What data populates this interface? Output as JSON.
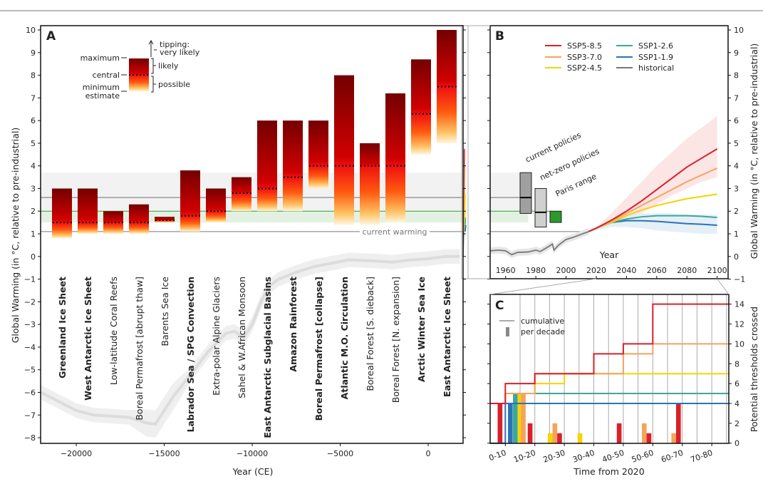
{
  "figure": {
    "panel_a_letter": "A",
    "panel_b_letter": "B",
    "panel_c_letter": "C"
  },
  "chart_data": [
    {
      "panel": "A",
      "type": "bar",
      "xlabel": "Year (CE)",
      "ylabel": "Global Warming (in °C, relative to pre-industrial)",
      "ylim": [
        -8.2,
        10.2
      ],
      "xlim": [
        -22000,
        2300
      ],
      "yticks": [
        "10",
        "9",
        "8",
        "7",
        "6",
        "5",
        "4",
        "3",
        "2",
        "1",
        "0",
        "−1",
        "−2",
        "−3",
        "−4",
        "−5",
        "−6",
        "−7",
        "−8"
      ],
      "ytick_values": [
        10,
        9,
        8,
        7,
        6,
        5,
        4,
        3,
        2,
        1,
        0,
        -1,
        -2,
        -3,
        -4,
        -5,
        -6,
        -7,
        -8
      ],
      "xticks": [
        "−20000",
        "−15000",
        "−10000",
        "−5000",
        "0"
      ],
      "xtick_values": [
        -20000,
        -15000,
        -10000,
        -5000,
        0
      ],
      "legend": {
        "maximum": "maximum",
        "central": "central",
        "minimum": "minimum",
        "estimate": "estimate",
        "tipping": "tipping:",
        "very_likely": "very likely",
        "likely": "likely",
        "possible": "possible"
      },
      "current_warming_label": "current warming",
      "reference_levels": {
        "current_warming": 1.1,
        "current_policies": 2.6,
        "current_policies_band": [
          1.9,
          3.7
        ],
        "paris": 2.0,
        "paris_band": [
          1.5,
          2.0
        ]
      },
      "elements": [
        {
          "name": "Greenland Ice Sheet",
          "bold": true,
          "max": 3.0,
          "central": 1.5,
          "min": 0.8
        },
        {
          "name": "West Antarctic Ice Sheet",
          "bold": true,
          "max": 3.0,
          "central": 1.5,
          "min": 1.0
        },
        {
          "name": "Low-latitude Coral Reefs",
          "bold": false,
          "max": 2.0,
          "central": 1.5,
          "min": 1.0
        },
        {
          "name": "Boreal Permafrost [abrupt thaw]",
          "bold": false,
          "max": 2.3,
          "central": 1.5,
          "min": 1.0
        },
        {
          "name": "Barents Sea Ice",
          "bold": false,
          "max": 1.75,
          "central": 1.6,
          "min": 1.5
        },
        {
          "name": "Labrador Sea / SPG Convection",
          "bold": true,
          "max": 3.8,
          "central": 1.8,
          "min": 1.1
        },
        {
          "name": "Extra-polar Alpine Glaciers",
          "bold": false,
          "max": 3.0,
          "central": 2.0,
          "min": 1.5
        },
        {
          "name": "Sahel & W.African Monsoon",
          "bold": false,
          "max": 3.5,
          "central": 2.8,
          "min": 2.0
        },
        {
          "name": "East Antarctic Subglacial Basins",
          "bold": true,
          "max": 6.0,
          "central": 3.0,
          "min": 2.0
        },
        {
          "name": "Amazon Rainforest",
          "bold": true,
          "max": 6.0,
          "central": 3.5,
          "min": 2.0
        },
        {
          "name": "Boreal Permafrost [collapse]",
          "bold": true,
          "max": 6.0,
          "central": 4.0,
          "min": 3.0
        },
        {
          "name": "Atlantic M.O. Circulation",
          "bold": true,
          "max": 8.0,
          "central": 4.0,
          "min": 1.4
        },
        {
          "name": "Boreal Forest [S. dieback]",
          "bold": false,
          "max": 5.0,
          "central": 4.0,
          "min": 1.4
        },
        {
          "name": "Boreal Forest [N. expansion]",
          "bold": false,
          "max": 7.2,
          "central": 4.0,
          "min": 1.5
        },
        {
          "name": "Arctic Winter Sea Ice",
          "bold": true,
          "max": 8.7,
          "central": 6.3,
          "min": 4.5
        },
        {
          "name": "East Antarctic Ice Sheet",
          "bold": true,
          "max": 10.0,
          "central": 7.5,
          "min": 5.0
        }
      ],
      "paleo_temperature": {
        "years": [
          -22000,
          -21000,
          -20000,
          -19000,
          -18000,
          -17000,
          -16000,
          -15500,
          -15000,
          -14500,
          -13500,
          -12500,
          -11500,
          -11000,
          -10500,
          -10000,
          -9500,
          -9000,
          -8500,
          -7500,
          -6500,
          -5500,
          -4500,
          -3000,
          -2000,
          -1000,
          0,
          1000,
          1800
        ],
        "values": [
          -6.0,
          -6.4,
          -6.8,
          -7.0,
          -7.05,
          -7.1,
          -7.35,
          -7.4,
          -6.8,
          -6.2,
          -5.2,
          -4.2,
          -3.4,
          -3.3,
          -3.6,
          -3.0,
          -2.0,
          -1.3,
          -1.0,
          -0.7,
          -0.45,
          -0.3,
          -0.15,
          -0.2,
          -0.25,
          -0.15,
          -0.1,
          0.0,
          0.0
        ]
      }
    },
    {
      "panel": "B",
      "type": "line",
      "xlabel": "Year",
      "ylabel": "Global Warming (in °C, relative to pre-industrial)",
      "xlim": [
        1950,
        2107
      ],
      "ylim": [
        -1,
        10.2
      ],
      "xticks": [
        "1960",
        "1980",
        "2000",
        "2020",
        "2040",
        "2060",
        "2080",
        "2100"
      ],
      "xtick_values": [
        1960,
        1980,
        2000,
        2020,
        2040,
        2060,
        2080,
        2100
      ],
      "yticks": [
        "10",
        "9",
        "8",
        "7",
        "6",
        "5",
        "4",
        "3",
        "2",
        "1",
        "0",
        "−1"
      ],
      "ytick_values": [
        10,
        9,
        8,
        7,
        6,
        5,
        4,
        3,
        2,
        1,
        0,
        -1
      ],
      "x": [
        2015,
        2020,
        2030,
        2040,
        2050,
        2060,
        2070,
        2080,
        2090,
        2100
      ],
      "series": [
        {
          "name": "SSP5-8.5",
          "color": "#d9202a",
          "values": [
            1.1,
            1.25,
            1.6,
            2.0,
            2.45,
            2.95,
            3.45,
            3.95,
            4.35,
            4.75
          ]
        },
        {
          "name": "SSP3-7.0",
          "color": "#f6a35e",
          "values": [
            1.1,
            1.25,
            1.55,
            1.9,
            2.25,
            2.6,
            2.95,
            3.3,
            3.6,
            3.9
          ]
        },
        {
          "name": "SSP2-4.5",
          "color": "#f7d300",
          "values": [
            1.1,
            1.25,
            1.5,
            1.8,
            2.05,
            2.25,
            2.4,
            2.55,
            2.65,
            2.75
          ]
        },
        {
          "name": "SSP1-2.6",
          "color": "#3aa89a",
          "values": [
            1.1,
            1.25,
            1.5,
            1.65,
            1.75,
            1.8,
            1.8,
            1.8,
            1.77,
            1.72
          ]
        },
        {
          "name": "SSP1-1.9",
          "color": "#2b72b5",
          "values": [
            1.1,
            1.25,
            1.5,
            1.58,
            1.58,
            1.55,
            1.5,
            1.45,
            1.42,
            1.38
          ]
        }
      ],
      "bands": [
        {
          "series": "SSP5-8.5",
          "upper": [
            1.1,
            1.3,
            1.9,
            2.6,
            3.3,
            4.0,
            4.6,
            5.2,
            5.7,
            6.2
          ],
          "lower": [
            1.1,
            1.2,
            1.4,
            1.6,
            1.9,
            2.3,
            2.7,
            3.0,
            3.3,
            3.5
          ]
        },
        {
          "series": "SSP1-1.9",
          "upper": [
            1.1,
            1.3,
            1.7,
            1.85,
            1.9,
            1.9,
            1.9,
            1.85,
            1.85,
            1.85
          ],
          "lower": [
            1.1,
            1.15,
            1.3,
            1.3,
            1.25,
            1.15,
            1.1,
            1.05,
            1.0,
            1.0
          ]
        }
      ],
      "historical": {
        "name": "historical",
        "color": "#777777",
        "years": [
          1950,
          1955,
          1960,
          1964,
          1968,
          1975,
          1980,
          1983,
          1988,
          1991,
          1992,
          1995,
          2000,
          2005,
          2010,
          2015
        ],
        "values": [
          0.25,
          0.28,
          0.25,
          0.08,
          0.18,
          0.2,
          0.28,
          0.22,
          0.42,
          0.55,
          0.28,
          0.5,
          0.75,
          0.85,
          0.98,
          1.1
        ]
      },
      "policy_ranges": [
        {
          "label": "current policies",
          "low": 1.9,
          "high": 3.7,
          "median": 2.6,
          "color": "#a0a0a0"
        },
        {
          "label": "net-zero policies",
          "low": 1.3,
          "high": 3.0,
          "median": 1.95,
          "color": "#d0d0d0"
        },
        {
          "label": "Paris range",
          "low": 1.5,
          "high": 2.0,
          "median": null,
          "color": "#2a9a2a"
        }
      ]
    },
    {
      "panel": "C",
      "type": "bar",
      "xlabel": "Time from 2020",
      "ylabel": "Potential thresholds crossed",
      "xlim": [
        -5,
        76
      ],
      "ylim": [
        0,
        15
      ],
      "xticks": [
        "0-10",
        "10-20",
        "20-30",
        "30-40",
        "40-50",
        "50-60",
        "60-70",
        "70-80"
      ],
      "xtick_values": [
        0,
        10,
        20,
        30,
        40,
        50,
        60,
        70
      ],
      "yticks": [
        "0",
        "2",
        "4",
        "6",
        "8",
        "10",
        "12",
        "14"
      ],
      "ytick_values": [
        0,
        2,
        4,
        6,
        8,
        10,
        12,
        14
      ],
      "legend": {
        "cumulative": "cumulative",
        "per_decade": "per decade"
      },
      "cumulative": [
        {
          "series": "SSP1-1.9",
          "steps": [
            [
              -5,
              0
            ],
            [
              0,
              4
            ]
          ]
        },
        {
          "series": "SSP1-2.6",
          "steps": [
            [
              0,
              5
            ]
          ]
        },
        {
          "series": "SSP2-4.5",
          "steps": [
            [
              0,
              5
            ],
            [
              10,
              6
            ],
            [
              20,
              7
            ]
          ]
        },
        {
          "series": "SSP3-7.0",
          "steps": [
            [
              0,
              5
            ],
            [
              10,
              7
            ],
            [
              40,
              9
            ],
            [
              50,
              10
            ]
          ]
        },
        {
          "series": "SSP5-8.5",
          "steps": [
            [
              -5,
              4
            ],
            [
              0,
              6
            ],
            [
              10,
              7
            ],
            [
              30,
              9
            ],
            [
              40,
              10
            ],
            [
              50,
              14
            ]
          ]
        }
      ],
      "per_decade": [
        {
          "series": "SSP5-8.5",
          "t": -2.6,
          "count": 4
        },
        {
          "series": "SSP1-1.9",
          "t": 0.9,
          "count": 4
        },
        {
          "series": "SSP1-2.6",
          "t": 2.6,
          "count": 5
        },
        {
          "series": "SSP2-4.5",
          "t": 4.2,
          "count": 5
        },
        {
          "series": "SSP3-7.0",
          "t": 5.3,
          "count": 5
        },
        {
          "series": "SSP5-8.5",
          "t": 7.6,
          "count": 2
        },
        {
          "series": "SSP2-4.5",
          "t": 14.4,
          "count": 1
        },
        {
          "series": "SSP3-7.0",
          "t": 16.0,
          "count": 2
        },
        {
          "series": "SSP5-8.5",
          "t": 17.6,
          "count": 1
        },
        {
          "series": "SSP2-4.5",
          "t": 24.5,
          "count": 1
        },
        {
          "series": "SSP5-8.5",
          "t": 37.8,
          "count": 2
        },
        {
          "series": "SSP3-7.0",
          "t": 46.3,
          "count": 2
        },
        {
          "series": "SSP5-8.5",
          "t": 47.9,
          "count": 1
        },
        {
          "series": "SSP3-7.0",
          "t": 56.3,
          "count": 1
        },
        {
          "series": "SSP5-8.5",
          "t": 57.9,
          "count": 4
        }
      ]
    }
  ]
}
